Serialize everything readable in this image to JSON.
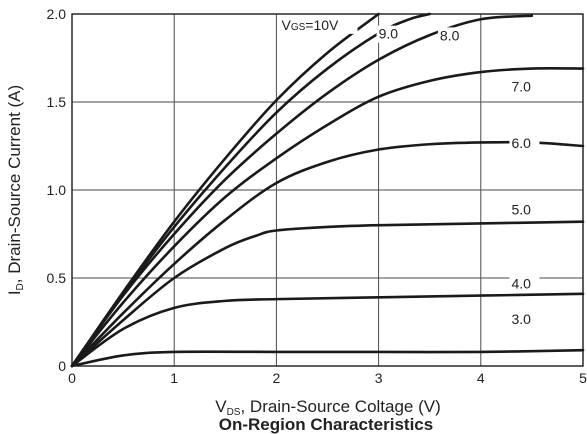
{
  "chart_data": {
    "type": "line",
    "title": "On-Region Characteristics",
    "xlabel": {
      "main": "V",
      "sub": "DS",
      "rest": ", Drain-Source Coltage (V)"
    },
    "ylabel": {
      "main": "I",
      "sub": "D",
      "rest": ", Drain-Source Current (A)"
    },
    "xlim": [
      0,
      5
    ],
    "ylim": [
      0,
      2.0
    ],
    "x_ticks": [
      "0",
      "1",
      "2",
      "3",
      "4",
      "5"
    ],
    "y_ticks": [
      "0",
      "0.5",
      "1.0",
      "1.5",
      "2.0"
    ],
    "grid": true,
    "line_color": "#1a1a1a",
    "series": [
      {
        "name": "VGS=10V",
        "label_parts": [
          "V",
          "GS",
          "=10V"
        ],
        "x": [
          0,
          0.5,
          1.0,
          1.5,
          2.0,
          2.5,
          3.0
        ],
        "y": [
          0,
          0.42,
          0.82,
          1.18,
          1.51,
          1.78,
          2.0
        ]
      },
      {
        "name": "9.0",
        "x": [
          0,
          0.5,
          1.0,
          1.5,
          2.0,
          2.5,
          3.0,
          3.3,
          3.5
        ],
        "y": [
          0,
          0.41,
          0.79,
          1.13,
          1.44,
          1.69,
          1.89,
          1.97,
          2.0
        ]
      },
      {
        "name": "8.0",
        "x": [
          0,
          0.5,
          1.0,
          1.5,
          2.0,
          2.5,
          3.0,
          3.5,
          4.0,
          4.5
        ],
        "y": [
          0,
          0.4,
          0.75,
          1.06,
          1.32,
          1.55,
          1.74,
          1.88,
          1.97,
          1.99
        ]
      },
      {
        "name": "7.0",
        "x": [
          0,
          0.5,
          1.0,
          1.5,
          2.0,
          2.5,
          3.0,
          3.5,
          4.0,
          4.5,
          5.0
        ],
        "y": [
          0,
          0.36,
          0.68,
          0.96,
          1.18,
          1.37,
          1.53,
          1.62,
          1.67,
          1.69,
          1.69
        ]
      },
      {
        "name": "6.0",
        "x": [
          0,
          0.5,
          1.0,
          1.5,
          2.0,
          2.5,
          3.0,
          3.5,
          4.0,
          4.5,
          5.0
        ],
        "y": [
          0,
          0.3,
          0.58,
          0.83,
          1.04,
          1.16,
          1.23,
          1.26,
          1.27,
          1.27,
          1.25
        ]
      },
      {
        "name": "5.0",
        "x": [
          0,
          0.5,
          1.0,
          1.5,
          1.8,
          2.0,
          2.5,
          3.0,
          4.0,
          5.0
        ],
        "y": [
          0,
          0.26,
          0.5,
          0.67,
          0.74,
          0.77,
          0.79,
          0.8,
          0.81,
          0.82
        ]
      },
      {
        "name": "4.0",
        "x": [
          0,
          0.5,
          1.0,
          1.5,
          2.0,
          3.0,
          4.0,
          5.0
        ],
        "y": [
          0,
          0.21,
          0.33,
          0.37,
          0.38,
          0.39,
          0.4,
          0.41
        ]
      },
      {
        "name": "3.0",
        "x": [
          0,
          0.5,
          1.0,
          2.0,
          3.0,
          4.0,
          5.0
        ],
        "y": [
          0,
          0.06,
          0.08,
          0.08,
          0.08,
          0.08,
          0.09
        ]
      }
    ]
  }
}
